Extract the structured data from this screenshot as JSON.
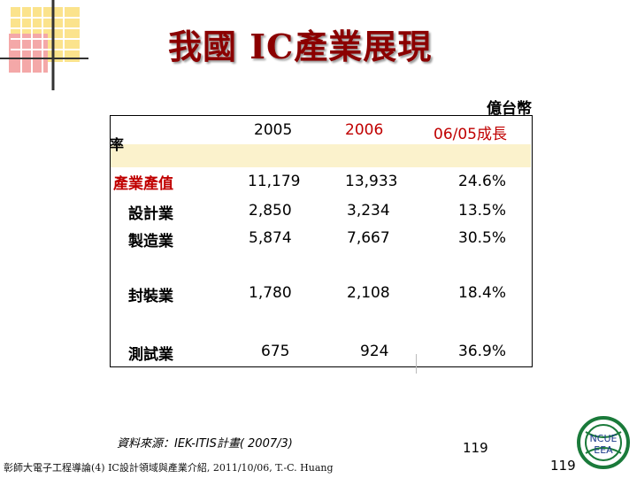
{
  "title": "我國 IC產業展現",
  "unit": "億台幣",
  "header_fragment": "率",
  "table": {
    "columns": [
      "2005",
      "2006",
      "06/05成長"
    ],
    "rows": [
      {
        "label": "產業產值",
        "v2005": "11,179",
        "v2006": "13,933",
        "growth": "24.6%"
      },
      {
        "label": "設計業",
        "v2005": "2,850",
        "v2006": "3,234",
        "growth": "13.5%"
      },
      {
        "label": "製造業",
        "v2005": "5,874",
        "v2006": "7,667",
        "growth": "30.5%"
      },
      {
        "label": "封裝業",
        "v2005": "1,780",
        "v2006": "2,108",
        "growth": "18.4%"
      },
      {
        "label": "測試業",
        "v2005": "675",
        "v2006": "924",
        "growth": "36.9%"
      }
    ]
  },
  "source": "資料來源：IEK-ITIS計畫( 2007/3)",
  "footer": "彰師大電子工程導論(4) IC設計領域與產業介紹, 2011/10/06, T.-C. Huang",
  "page_number": "119",
  "page_number_corner": "119",
  "logo_text": {
    "line1": "NCUE",
    "line2": "EEA"
  },
  "colors": {
    "title": "#8b0000",
    "first_row": "#c00000",
    "band": "#fbf2cc"
  }
}
